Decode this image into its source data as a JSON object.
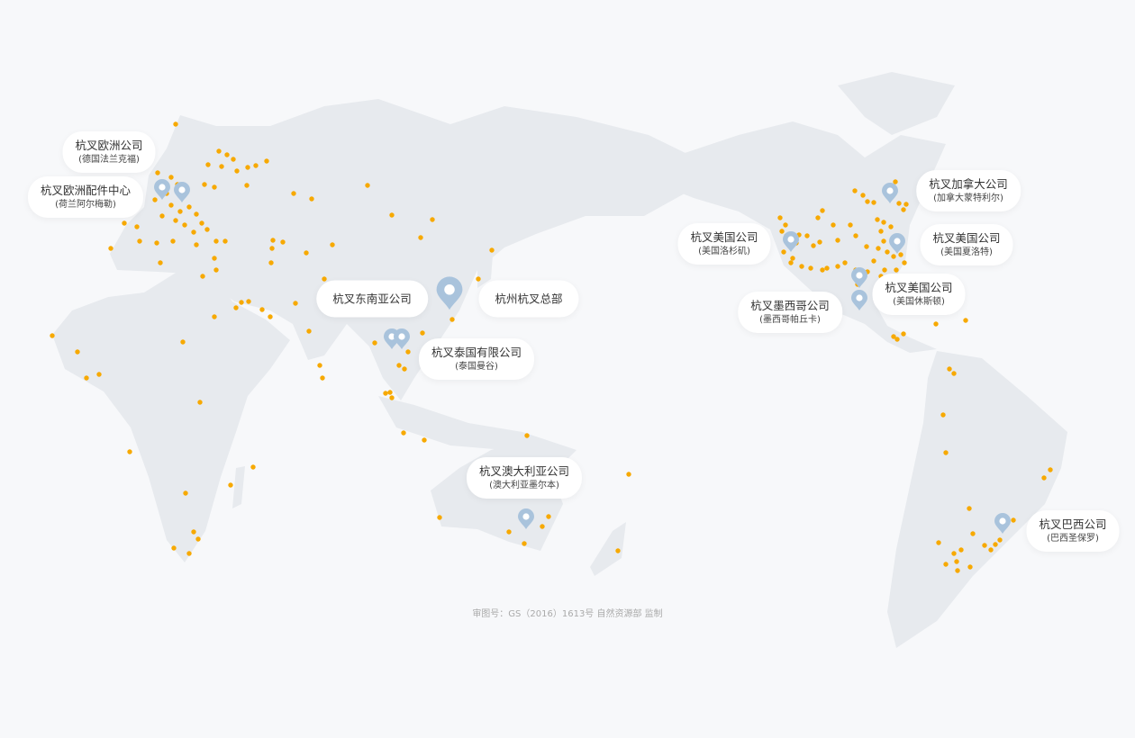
{
  "colors": {
    "background": "#f7f8fa",
    "land": "#e7eaee",
    "dot": "#f7a900",
    "pin": "#a9c3dc"
  },
  "offices": [
    {
      "name": "杭叉欧洲公司",
      "city": "(德国法兰克福)"
    },
    {
      "name": "杭叉欧洲配件中心",
      "city": "(荷兰阿尔梅勒)"
    },
    {
      "name": "杭叉东南亚公司"
    },
    {
      "name": "杭州杭叉总部"
    },
    {
      "name": "杭叉泰国有限公司",
      "city": "(泰国曼谷)"
    },
    {
      "name": "杭叉澳大利亚公司",
      "city": "(澳大利亚墨尔本)"
    },
    {
      "name": "杭叉美国公司",
      "city": "(美国洛杉矶)"
    },
    {
      "name": "杭叉加拿大公司",
      "city": "(加拿大蒙特利尔)"
    },
    {
      "name": "杭叉美国公司",
      "city": "(美国夏洛特)"
    },
    {
      "name": "杭叉美国公司",
      "city": "(美国休斯顿)"
    },
    {
      "name": "杭叉墨西哥公司",
      "city": "(墨西哥帕丘卡)"
    },
    {
      "name": "杭叉巴西公司",
      "city": "(巴西圣保罗)"
    }
  ],
  "approval": "审图号：GS（2016）1613号 自然资源部 监制"
}
